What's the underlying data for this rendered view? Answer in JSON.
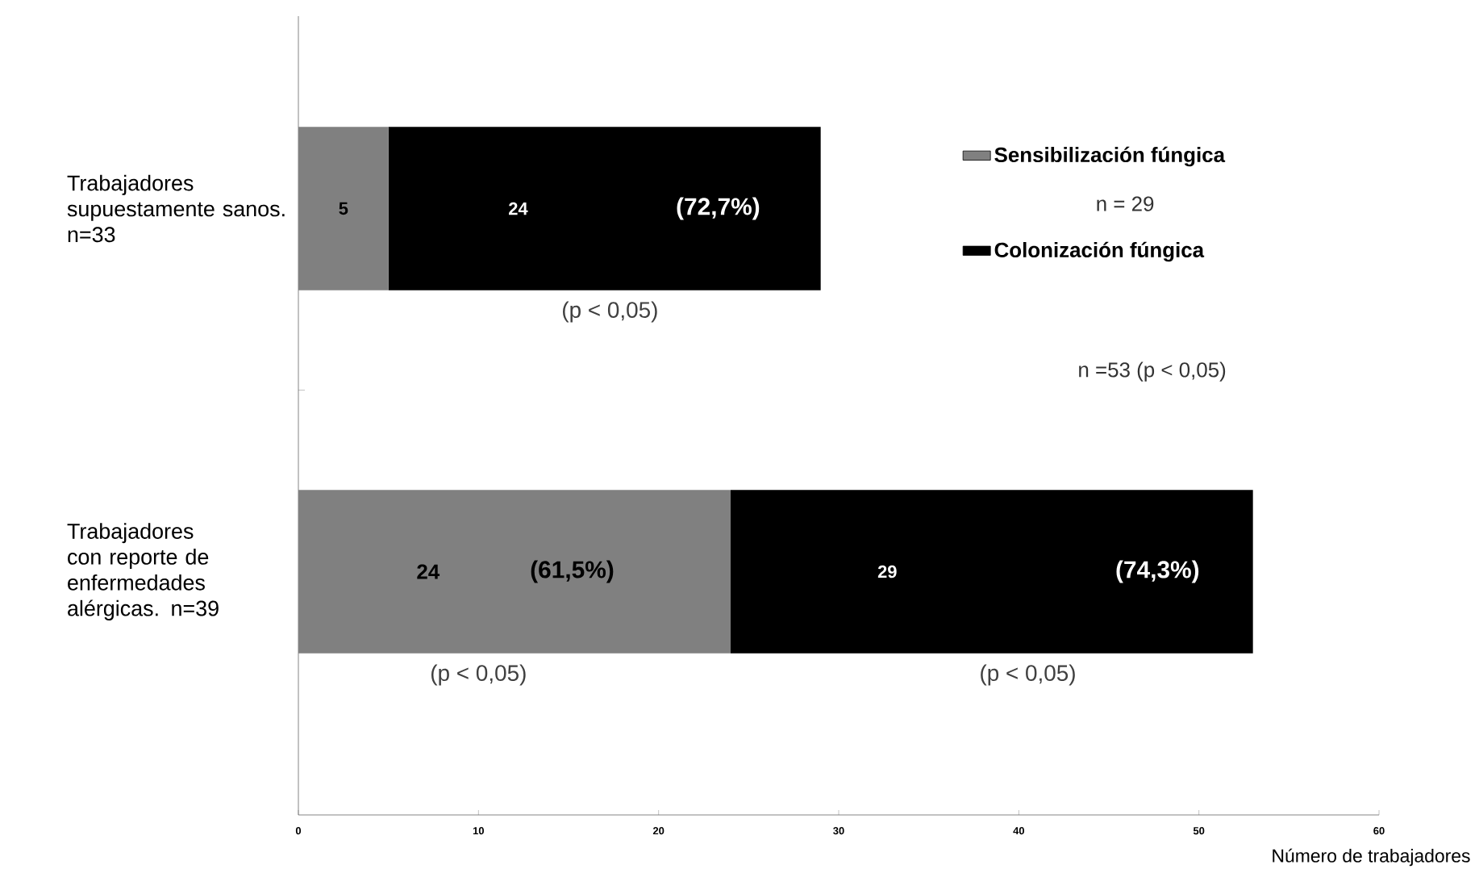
{
  "chart_data": {
    "type": "bar",
    "orientation": "horizontal",
    "stacked": true,
    "categories": [
      "Trabajadores supuestamente sanos. n=33",
      "Trabajadores con reporte de enfermedades alérgicas. n=39"
    ],
    "series": [
      {
        "name": "Sensibilización fúngica",
        "color": "#808080",
        "values": [
          5,
          24
        ],
        "value_labels": [
          "5",
          "24"
        ]
      },
      {
        "name": "Colonización fúngica",
        "color": "#000000",
        "values": [
          24,
          29
        ],
        "value_labels": [
          "24",
          "29"
        ]
      }
    ],
    "xlabel": "Número  de trabajadores",
    "xlim": [
      0,
      60
    ],
    "xticks": [
      0,
      10,
      20,
      30,
      40,
      50,
      60
    ],
    "legend": "right",
    "grid": false,
    "annotations": [
      "(72,7%)",
      "(61,5%)",
      "(74,3%)",
      "(p < 0,05)",
      "(p < 0,05)",
      "(p < 0,05)",
      "n = 29",
      "n =53  (p < 0,05)"
    ]
  }
}
